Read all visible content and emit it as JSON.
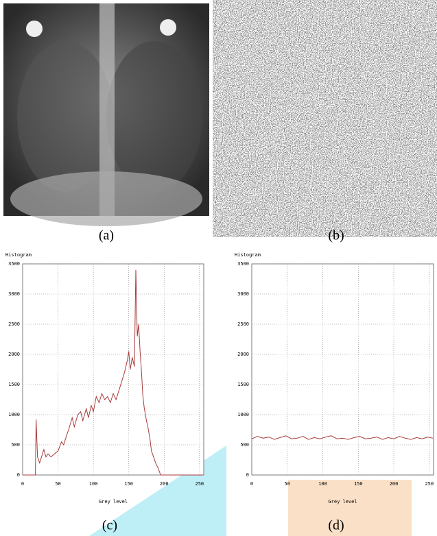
{
  "captions": [
    "(a)",
    "(b)",
    "(c)",
    "(d)"
  ],
  "chart_data": [
    {
      "type": "line",
      "title": "Histogram",
      "x_label": "Grey level",
      "xlim": [
        0,
        256
      ],
      "ylim": [
        0,
        3500
      ],
      "xticks": [
        0,
        50,
        100,
        150,
        200,
        250
      ],
      "yticks": [
        0,
        500,
        1000,
        1500,
        2000,
        2500,
        3000,
        3500
      ],
      "grid": true,
      "series": [
        {
          "color": "#a83a3a",
          "x": [
            0,
            18,
            19,
            21,
            24,
            28,
            30,
            33,
            36,
            40,
            45,
            50,
            55,
            58,
            62,
            65,
            70,
            73,
            78,
            82,
            85,
            90,
            93,
            97,
            100,
            104,
            108,
            112,
            116,
            120,
            124,
            128,
            132,
            136,
            140,
            144,
            148,
            150,
            152,
            155,
            158,
            160,
            162,
            164,
            166,
            168,
            170,
            172,
            175,
            177,
            180,
            182,
            185,
            188,
            192,
            195,
            255
          ],
          "values": [
            0,
            0,
            920,
            300,
            200,
            350,
            420,
            300,
            350,
            300,
            350,
            400,
            550,
            500,
            650,
            750,
            950,
            800,
            1000,
            1050,
            900,
            1100,
            950,
            1150,
            1050,
            1300,
            1200,
            1350,
            1250,
            1300,
            1200,
            1350,
            1250,
            1400,
            1550,
            1700,
            1900,
            2050,
            1750,
            1950,
            1800,
            3400,
            2300,
            2500,
            2050,
            1700,
            1300,
            1100,
            900,
            800,
            600,
            400,
            300,
            200,
            100,
            0,
            0
          ]
        }
      ]
    },
    {
      "type": "line",
      "title": "Histogram",
      "x_label": "Grey level",
      "xlim": [
        0,
        256
      ],
      "ylim": [
        0,
        3500
      ],
      "xticks": [
        0,
        50,
        100,
        150,
        200,
        250
      ],
      "yticks": [
        0,
        500,
        1000,
        1500,
        2000,
        2500,
        3000,
        3500
      ],
      "grid": true,
      "series": [
        {
          "color": "#a83a3a",
          "x": [
            0,
            8,
            16,
            24,
            32,
            40,
            48,
            56,
            64,
            72,
            80,
            88,
            96,
            104,
            112,
            120,
            128,
            136,
            144,
            152,
            160,
            168,
            176,
            184,
            192,
            200,
            208,
            216,
            224,
            232,
            240,
            248,
            255
          ],
          "values": [
            600,
            640,
            610,
            630,
            590,
            620,
            650,
            600,
            610,
            640,
            590,
            620,
            600,
            630,
            650,
            600,
            610,
            590,
            620,
            640,
            600,
            610,
            630,
            590,
            620,
            600,
            640,
            610,
            590,
            620,
            600,
            630,
            610
          ]
        }
      ]
    }
  ]
}
